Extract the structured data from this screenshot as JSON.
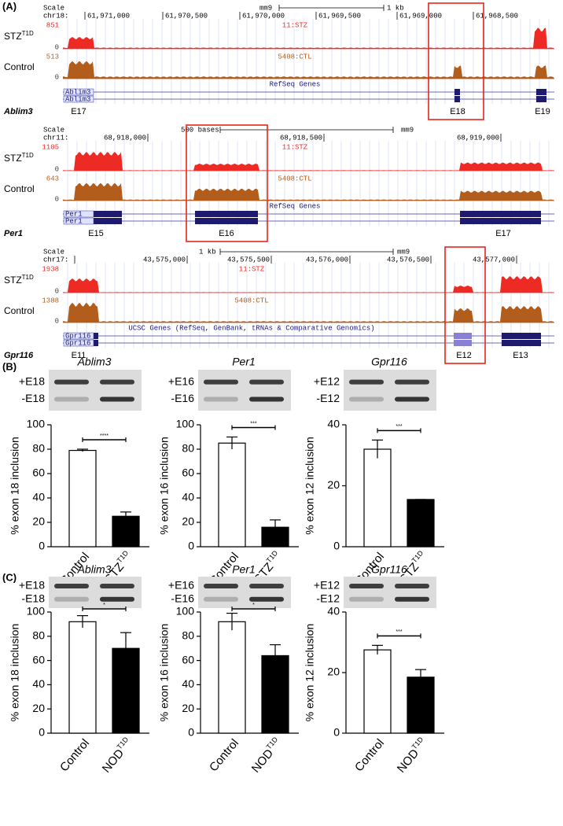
{
  "panel_labels": [
    "(A)",
    "(B)",
    "(C)"
  ],
  "browser": [
    {
      "gene": "Ablim3",
      "scale": "Scale",
      "chrom": "chr18:",
      "assembly": "mm9",
      "scale_bar": "1 kb",
      "coords": [
        "61,971,000",
        "61,970,500",
        "61,970,000",
        "61,969,500",
        "61,969,000",
        "61,968,500"
      ],
      "tracks": [
        {
          "name": "STZ",
          "superscript": "T1D",
          "max": 851,
          "min": 0,
          "label": "11:STZ",
          "color": "#ee2a24"
        },
        {
          "name": "Control",
          "max": 513,
          "min": 0,
          "label": "5408:CTL",
          "color": "#b25d1c"
        }
      ],
      "gene_track": "RefSeq Genes",
      "transcripts": [
        "Ablim3",
        "Ablim3"
      ],
      "exons": [
        "E17",
        "E18",
        "E19"
      ]
    },
    {
      "gene": "Per1",
      "scale": "Scale",
      "chrom": "chr11:",
      "assembly": "mm9",
      "scale_bar": "500 bases",
      "coords": [
        "68,918,000",
        "68,918,500",
        "68,919,000"
      ],
      "tracks": [
        {
          "name": "STZ",
          "superscript": "T1D",
          "max": 1105,
          "min": 0,
          "label": "11:STZ",
          "color": "#ee2a24"
        },
        {
          "name": "Control",
          "max": 643,
          "min": 0,
          "label": "5408:CTL",
          "color": "#b25d1c"
        }
      ],
      "gene_track": "RefSeq Genes",
      "transcripts": [
        "Per1",
        "Per1"
      ],
      "exons": [
        "E15",
        "E16",
        "E17"
      ]
    },
    {
      "gene": "Gpr116",
      "scale": "Scale",
      "chrom": "chr17:",
      "assembly": "mm9",
      "scale_bar": "1 kb",
      "coords": [
        "43,575,000",
        "43,575,500",
        "43,576,000",
        "43,576,500",
        "43,577,000"
      ],
      "tracks": [
        {
          "name": "STZ",
          "superscript": "T1D",
          "max": 1938,
          "min": 0,
          "label": "11:STZ",
          "color": "#ee2a24"
        },
        {
          "name": "Control",
          "max": 1388,
          "min": 0,
          "label": "5408:CTL",
          "color": "#b25d1c"
        }
      ],
      "gene_track": "UCSC Genes (RefSeq, GenBank, tRNAs & Comparative Genomics)",
      "transcripts": [
        "Gpr116",
        "Gpr116"
      ],
      "exons": [
        "E11",
        "E12",
        "E13"
      ]
    }
  ],
  "chart_data": [
    {
      "type": "bar",
      "title": "Ablim3",
      "gel_labels": [
        "+E18",
        "-E18"
      ],
      "ylabel": "% exon 18 inclusion",
      "categories": [
        "Control",
        "STZ"
      ],
      "category_superscript": "T1D",
      "values": [
        79,
        25
      ],
      "errors": [
        1,
        3.5
      ],
      "colors": [
        "#ffffff",
        "#000000"
      ],
      "ylim": [
        0,
        100
      ],
      "yticks": [
        0,
        20,
        40,
        60,
        80,
        100
      ],
      "significance": "****"
    },
    {
      "type": "bar",
      "title": "Per1",
      "gel_labels": [
        "+E16",
        "-E16"
      ],
      "ylabel": "% exon 16 inclusion",
      "categories": [
        "Control",
        "STZ"
      ],
      "category_superscript": "T1D",
      "values": [
        85,
        16
      ],
      "errors": [
        5,
        6
      ],
      "colors": [
        "#ffffff",
        "#000000"
      ],
      "ylim": [
        0,
        100
      ],
      "yticks": [
        0,
        20,
        40,
        60,
        80,
        100
      ],
      "significance": "***"
    },
    {
      "type": "bar",
      "title": "Gpr116",
      "gel_labels": [
        "+E12",
        "-E12"
      ],
      "ylabel": "% exon 12 inclusion",
      "categories": [
        "Control",
        "STZ"
      ],
      "category_superscript": "T1D",
      "values": [
        32,
        15.5
      ],
      "errors": [
        3,
        0
      ],
      "colors": [
        "#ffffff",
        "#000000"
      ],
      "ylim": [
        0,
        40
      ],
      "yticks": [
        0,
        20,
        40
      ],
      "significance": "***"
    },
    {
      "type": "bar",
      "title": "Ablim3",
      "gel_labels": [
        "+E18",
        "-E18"
      ],
      "ylabel": "% exon 18 inclusion",
      "categories": [
        "Control",
        "NOD"
      ],
      "category_superscript": "T1D",
      "values": [
        92,
        70
      ],
      "errors": [
        5,
        13
      ],
      "colors": [
        "#ffffff",
        "#000000"
      ],
      "ylim": [
        0,
        100
      ],
      "yticks": [
        0,
        20,
        40,
        60,
        80,
        100
      ],
      "significance": "*"
    },
    {
      "type": "bar",
      "title": "Per1",
      "gel_labels": [
        "+E16",
        "-E16"
      ],
      "ylabel": "% exon 16 inclusion",
      "categories": [
        "Control",
        "NOD"
      ],
      "category_superscript": "T1D",
      "values": [
        92,
        64
      ],
      "errors": [
        7,
        9
      ],
      "colors": [
        "#ffffff",
        "#000000"
      ],
      "ylim": [
        0,
        100
      ],
      "yticks": [
        0,
        20,
        40,
        60,
        80,
        100
      ],
      "significance": "*"
    },
    {
      "type": "bar",
      "title": "Gpr116",
      "gel_labels": [
        "+E12",
        "-E12"
      ],
      "ylabel": "% exon 12 inclusion",
      "categories": [
        "Control",
        "NOD"
      ],
      "category_superscript": "T1D",
      "values": [
        27.5,
        18.5
      ],
      "errors": [
        1.5,
        2.5
      ],
      "colors": [
        "#ffffff",
        "#000000"
      ],
      "ylim": [
        0,
        40
      ],
      "yticks": [
        0,
        20,
        40
      ],
      "significance": "***"
    }
  ]
}
